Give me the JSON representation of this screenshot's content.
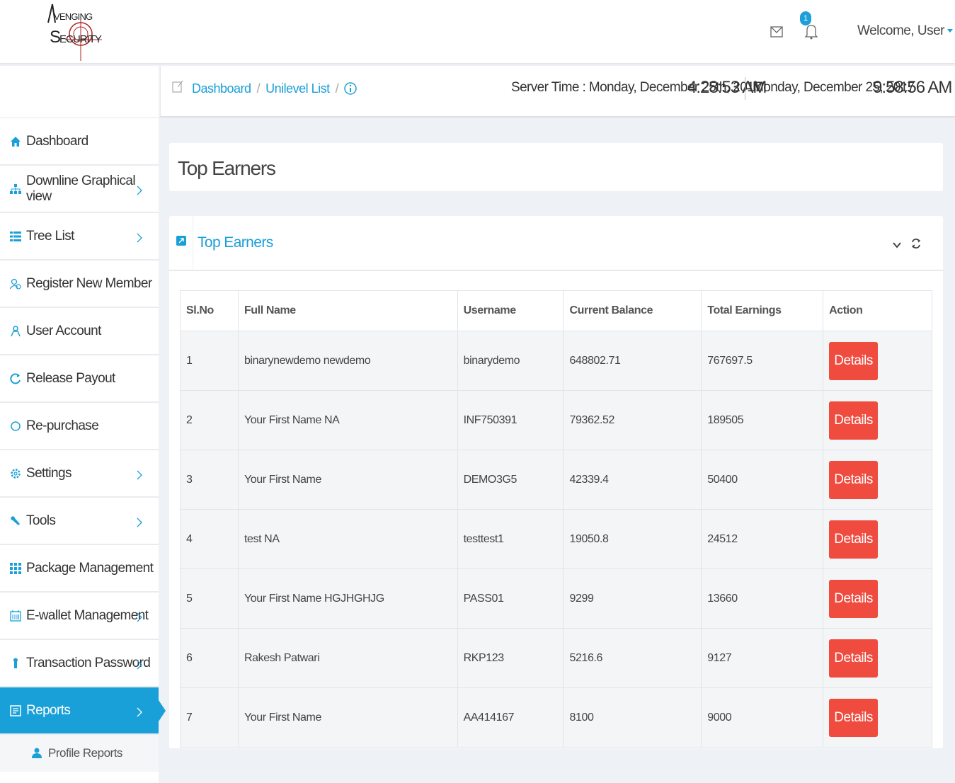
{
  "header": {
    "logo_text": "AVENGING SECURITY",
    "notification_count": "1",
    "welcome": "Welcome, User"
  },
  "breadcrumb": {
    "items": [
      "Dashboard",
      "Unilevel List"
    ],
    "server_time_label": "Server Time : Monday, December 25th, 2017",
    "server_time": "4:28:53 AM",
    "local_date": "Monday, December 25, 2017",
    "local_time": "9:58:56 AM"
  },
  "sidebar": {
    "items": [
      {
        "label": "Dashboard",
        "icon": "home-icon"
      },
      {
        "label": "Downline Graphical view",
        "icon": "sitemap-icon"
      },
      {
        "label": "Tree List",
        "icon": "list-icon"
      },
      {
        "label": "Register New Member",
        "icon": "user-add-icon"
      },
      {
        "label": "User Account",
        "icon": "user-icon"
      },
      {
        "label": "Release Payout",
        "icon": "refresh-icon"
      },
      {
        "label": "Re-purchase",
        "icon": "circle-icon"
      },
      {
        "label": "Settings",
        "icon": "gear-icon"
      },
      {
        "label": "Tools",
        "icon": "wrench-icon"
      },
      {
        "label": "Package Management",
        "icon": "grid-icon"
      },
      {
        "label": "E-wallet Management",
        "icon": "calendar-icon"
      },
      {
        "label": "Transaction Password",
        "icon": "key-icon"
      },
      {
        "label": "Reports",
        "icon": "report-icon"
      }
    ],
    "sub_items": [
      {
        "label": "Profile Reports",
        "icon": "person-icon"
      }
    ]
  },
  "page": {
    "title": "Top Earners",
    "portlet_title": "Top Earners"
  },
  "table": {
    "headers": [
      "Sl.No",
      "Full Name",
      "Username",
      "Current Balance",
      "Total Earnings",
      "Action"
    ],
    "action_label": "Details",
    "rows": [
      [
        "1",
        "binarynewdemo newdemo",
        "binarydemo",
        "648802.71",
        "767697.5"
      ],
      [
        "2",
        "Your First Name NA",
        "INF750391",
        "79362.52",
        "189505"
      ],
      [
        "3",
        "Your First Name",
        "DEMO3G5",
        "42339.4",
        "50400"
      ],
      [
        "4",
        "test NA",
        "testtest1",
        "19050.8",
        "24512"
      ],
      [
        "5",
        "Your First Name HGJHGHJG",
        "PASS01",
        "9299",
        "13660"
      ],
      [
        "6",
        "Rakesh Patwari",
        "RKP123",
        "5216.6",
        "9127"
      ],
      [
        "7",
        "Your First Name",
        "AA414167",
        "8100",
        "9000"
      ]
    ]
  },
  "colors": {
    "accent": "#1aa0d8",
    "danger": "#ef4b3f"
  }
}
